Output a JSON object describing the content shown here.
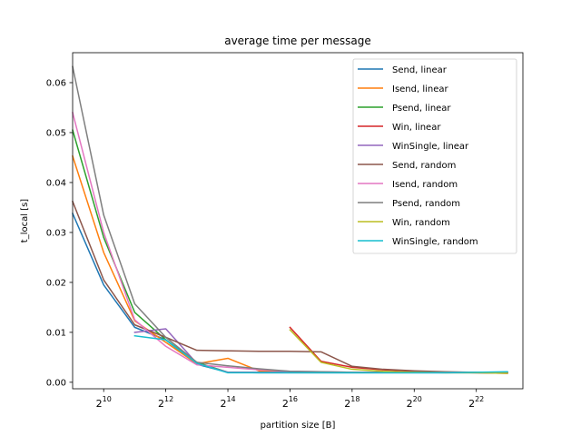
{
  "chart_data": {
    "type": "line",
    "title": "average time per message",
    "xlabel": "partition size [B]",
    "ylabel": "t_local [s]",
    "x_scale": "log2",
    "xlim": [
      9,
      23.5
    ],
    "ylim": [
      -0.0013,
      0.066
    ],
    "x_ticks": [
      {
        "exp": 10,
        "base": "2",
        "sup": "10"
      },
      {
        "exp": 12,
        "base": "2",
        "sup": "12"
      },
      {
        "exp": 14,
        "base": "2",
        "sup": "14"
      },
      {
        "exp": 16,
        "base": "2",
        "sup": "16"
      },
      {
        "exp": 18,
        "base": "2",
        "sup": "18"
      },
      {
        "exp": 20,
        "base": "2",
        "sup": "20"
      },
      {
        "exp": 22,
        "base": "2",
        "sup": "22"
      }
    ],
    "y_ticks": [
      "0.00",
      "0.01",
      "0.02",
      "0.03",
      "0.04",
      "0.05",
      "0.06"
    ],
    "legend_position": "upper right",
    "series": [
      {
        "name": "Send, linear",
        "color": "#1f77b4",
        "x_exp": [
          9,
          10,
          11,
          12,
          13,
          14,
          15,
          16,
          17,
          18,
          19,
          20,
          21,
          22,
          23
        ],
        "y": [
          0.0338,
          0.0195,
          0.011,
          0.0085,
          0.0036,
          0.002,
          0.0019,
          0.0019,
          0.0019,
          0.0019,
          0.0019,
          0.0019,
          0.0019,
          0.0019,
          0.0019
        ]
      },
      {
        "name": "Isend, linear",
        "color": "#ff7f0e",
        "x_exp": [
          9,
          10,
          11,
          12,
          13,
          14,
          15,
          16,
          17,
          18,
          19,
          20,
          21,
          22,
          23
        ],
        "y": [
          0.0453,
          0.026,
          0.0123,
          0.008,
          0.0037,
          0.0048,
          0.0023,
          0.002,
          0.002,
          0.002,
          0.002,
          0.002,
          0.002,
          0.002,
          0.002
        ]
      },
      {
        "name": "Psend, linear",
        "color": "#2ca02c",
        "x_exp": [
          9,
          10,
          11,
          12,
          13,
          14,
          15,
          16,
          17,
          18,
          19,
          20,
          21,
          22,
          23
        ],
        "y": [
          0.0505,
          0.029,
          0.014,
          0.0085,
          0.004,
          0.002,
          0.002,
          0.002,
          0.002,
          0.002,
          0.002,
          0.002,
          0.002,
          0.002,
          0.002
        ]
      },
      {
        "name": "Win, linear",
        "color": "#d62728",
        "x_exp": [
          16,
          17,
          18,
          19,
          20,
          21,
          22,
          23
        ],
        "y": [
          0.011,
          0.0042,
          0.003,
          0.0025,
          0.0022,
          0.002,
          0.0019,
          0.0018
        ]
      },
      {
        "name": "WinSingle, linear",
        "color": "#9467bd",
        "x_exp": [
          11,
          12,
          13,
          14,
          15,
          16,
          17,
          18,
          19,
          20,
          21,
          22,
          23
        ],
        "y": [
          0.01,
          0.0107,
          0.0038,
          0.002,
          0.002,
          0.002,
          0.002,
          0.002,
          0.002,
          0.002,
          0.002,
          0.002,
          0.002
        ]
      },
      {
        "name": "Send, random",
        "color": "#8c564b",
        "x_exp": [
          9,
          10,
          11,
          12,
          13,
          14,
          15,
          16,
          17,
          18,
          19,
          20,
          21,
          22,
          23
        ],
        "y": [
          0.0362,
          0.0205,
          0.0115,
          0.009,
          0.0064,
          0.0063,
          0.0062,
          0.0062,
          0.0061,
          0.0032,
          0.0026,
          0.0023,
          0.0021,
          0.002,
          0.0019
        ]
      },
      {
        "name": "Isend, random",
        "color": "#e377c2",
        "x_exp": [
          9,
          10,
          11,
          12,
          13,
          14,
          15,
          16,
          17,
          18,
          19,
          20,
          21,
          22,
          23
        ],
        "y": [
          0.054,
          0.03,
          0.0125,
          0.0072,
          0.0035,
          0.003,
          0.0025,
          0.0022,
          0.0021,
          0.002,
          0.002,
          0.002,
          0.002,
          0.002,
          0.002
        ]
      },
      {
        "name": "Psend, random",
        "color": "#7f7f7f",
        "x_exp": [
          9,
          10,
          11,
          12,
          13,
          14,
          15,
          16,
          17,
          18,
          19,
          20,
          21,
          22,
          23
        ],
        "y": [
          0.0632,
          0.0335,
          0.0157,
          0.009,
          0.004,
          0.0033,
          0.0027,
          0.0022,
          0.0021,
          0.002,
          0.002,
          0.002,
          0.002,
          0.002,
          0.002
        ]
      },
      {
        "name": "Win, random",
        "color": "#bcbd22",
        "x_exp": [
          16,
          17,
          18,
          19,
          20,
          21,
          22,
          23
        ],
        "y": [
          0.0105,
          0.004,
          0.0026,
          0.0022,
          0.002,
          0.0019,
          0.0019,
          0.0018
        ]
      },
      {
        "name": "WinSingle, random",
        "color": "#17becf",
        "x_exp": [
          11,
          12,
          13,
          14,
          15,
          16,
          17,
          18,
          19,
          20,
          21,
          22,
          23
        ],
        "y": [
          0.0093,
          0.0085,
          0.0038,
          0.0019,
          0.0019,
          0.0019,
          0.0019,
          0.0019,
          0.0019,
          0.0019,
          0.0019,
          0.002,
          0.0021
        ]
      }
    ]
  }
}
